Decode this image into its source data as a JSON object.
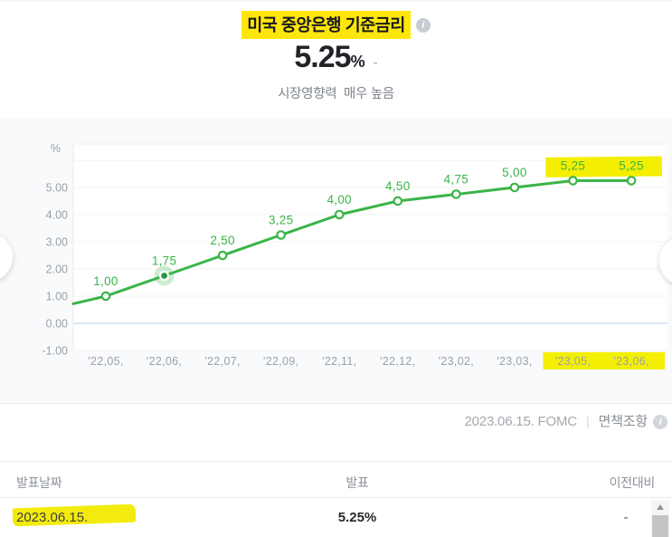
{
  "header": {
    "title": "미국 중앙은행 기준금리",
    "value": "5.25",
    "unit": "%",
    "change": "-",
    "impact_label": "시장영향력",
    "impact_value": "매우 높음"
  },
  "chart_data": {
    "type": "line",
    "title": "미국 중앙은행 기준금리",
    "unit": "%",
    "categories": [
      "'22,05,",
      "'22,06,",
      "'22,07,",
      "'22,09,",
      "'22,11,",
      "'22,12,",
      "'23,02,",
      "'23,03,",
      "'23,05,",
      "'23,06,"
    ],
    "values": [
      1.0,
      1.75,
      2.5,
      3.25,
      4.0,
      4.5,
      4.75,
      5.0,
      5.25,
      5.25
    ],
    "point_labels": [
      "1,00",
      "1,75",
      "2,50",
      "3,25",
      "4,00",
      "4,50",
      "4,75",
      "5,00",
      "5,25",
      "5,25"
    ],
    "y_tick_labels": [
      "5.00",
      "4.00",
      "3.00",
      "2.00",
      "1.00",
      "0.00",
      "-1.00"
    ],
    "y_tick_values": [
      5,
      4,
      3,
      2,
      1,
      0,
      -1
    ],
    "ylim": [
      -1,
      6
    ],
    "lead_in_value": 0.72,
    "grid": true,
    "legend": false,
    "line_color": "#3ab449",
    "marker_fill": "#ffffff",
    "halo_dot_color": "#249a38",
    "zero_line_color": "#c6d8ef",
    "grid_color": "#f1f3f5",
    "axis_text_color": "#9ba1a8",
    "highlight_color": "#f4ef00",
    "highlighted_point_index": 1,
    "highlighted_label_indexes": [
      8,
      9
    ],
    "highlighted_x_label_indexes": [
      8,
      9
    ]
  },
  "chart_footer": {
    "event_date": "2023.06.15. FOMC",
    "divider": "|",
    "disclaimer": "면책조항"
  },
  "table": {
    "columns": [
      "발표날짜",
      "발표",
      "이전대비"
    ],
    "rows": [
      {
        "date": "2023.06.15.",
        "announced": "5.25%",
        "vs_previous": "-"
      }
    ]
  },
  "icons": {
    "info": "i",
    "carousel_left": "‹",
    "carousel_right": "›"
  }
}
